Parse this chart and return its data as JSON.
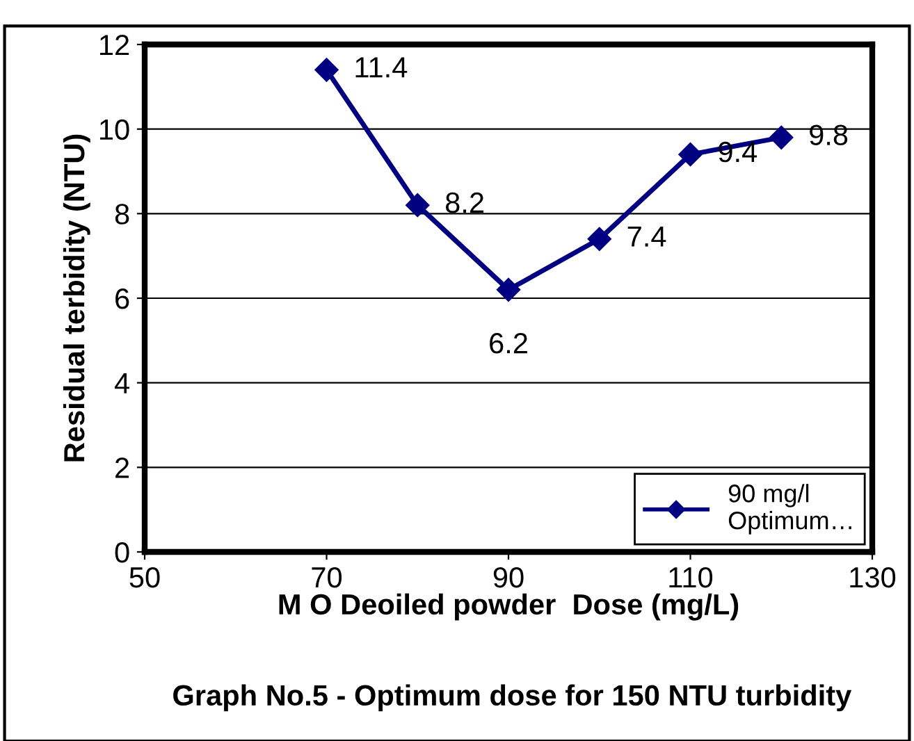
{
  "chart_data": {
    "type": "line",
    "title": "Graph No.5 - Optimum dose for 150 NTU turbidity",
    "xlabel": "M O Deoiled powder  Dose (mg/L)",
    "ylabel": "Residual terbidity (NTU)",
    "x": [
      70,
      80,
      90,
      100,
      110,
      120
    ],
    "series": [
      {
        "name": "90 mg/l\nOptimum…",
        "color": "#000080",
        "values": [
          11.4,
          8.2,
          6.2,
          7.4,
          9.4,
          9.8
        ]
      }
    ],
    "xlim": [
      50,
      130
    ],
    "xticks": [
      50,
      70,
      90,
      110,
      130
    ],
    "ylim": [
      0,
      12
    ],
    "yticks": [
      0,
      2,
      4,
      6,
      8,
      10,
      12
    ],
    "grid": "y",
    "legend": "bottom right",
    "marker": "diamond",
    "line_style": "solid",
    "data_labels": true
  }
}
